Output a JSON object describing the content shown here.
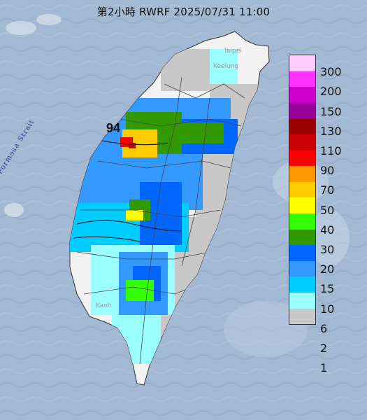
{
  "header": {
    "title": "第2小時  RWRF 2025/07/31 11:00"
  },
  "map": {
    "strait_label": "Formosa Strait",
    "places": {
      "taipei": "Taipei",
      "keelung": "Keelung",
      "kaohsiung": "Kaoh"
    },
    "max_value_label": "94"
  },
  "legend": {
    "labels": [
      "300",
      "200",
      "150",
      "130",
      "110",
      "90",
      "70",
      "50",
      "40",
      "30",
      "20",
      "15",
      "10",
      "6",
      "2",
      "1"
    ],
    "colors": [
      "#ffccff",
      "#ff33ff",
      "#cc00cc",
      "#990099",
      "#990000",
      "#cc0000",
      "#ff0000",
      "#ff9900",
      "#ffcc00",
      "#ffff00",
      "#33ff00",
      "#339900",
      "#0066ff",
      "#3399ff",
      "#00ccff",
      "#99ffff",
      "#c8c8c8"
    ]
  },
  "colors": {
    "sea": "#9fb6d0",
    "land": "#f2f2f2",
    "no_rain": "#c8c8c8"
  }
}
